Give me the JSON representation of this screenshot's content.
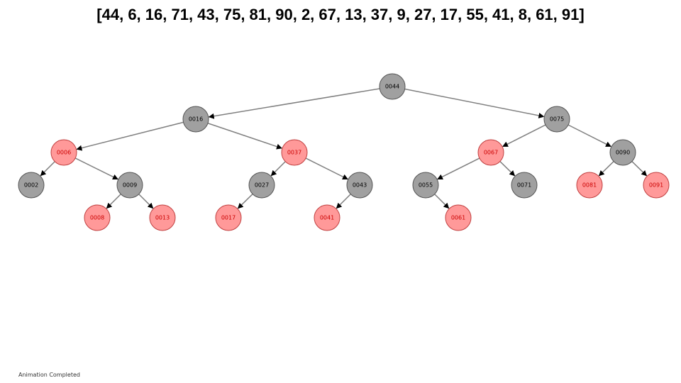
{
  "title": "[44, 6, 16, 71, 43, 75, 81, 90, 2, 67, 13, 37, 9, 27, 17, 55, 41, 8, 61, 91]",
  "status": "Animation Completed",
  "colors": {
    "black_fill": "#a0a0a0",
    "black_stroke": "#555555",
    "black_text": "#000000",
    "red_fill": "#ff9999",
    "red_stroke": "#c04040",
    "red_text": "#cc0000",
    "edge": "#808080",
    "arrow": "#000000"
  },
  "tree": {
    "nodes": [
      {
        "id": "44",
        "label": "0044",
        "color": "black"
      },
      {
        "id": "16",
        "label": "0016",
        "color": "black"
      },
      {
        "id": "75",
        "label": "0075",
        "color": "black"
      },
      {
        "id": "6",
        "label": "0006",
        "color": "red"
      },
      {
        "id": "37",
        "label": "0037",
        "color": "red"
      },
      {
        "id": "67",
        "label": "0067",
        "color": "red"
      },
      {
        "id": "90",
        "label": "0090",
        "color": "black"
      },
      {
        "id": "2",
        "label": "0002",
        "color": "black"
      },
      {
        "id": "9",
        "label": "0009",
        "color": "black"
      },
      {
        "id": "27",
        "label": "0027",
        "color": "black"
      },
      {
        "id": "43",
        "label": "0043",
        "color": "black"
      },
      {
        "id": "55",
        "label": "0055",
        "color": "black"
      },
      {
        "id": "71",
        "label": "0071",
        "color": "black"
      },
      {
        "id": "81",
        "label": "0081",
        "color": "red"
      },
      {
        "id": "91",
        "label": "0091",
        "color": "red"
      },
      {
        "id": "8",
        "label": "0008",
        "color": "red"
      },
      {
        "id": "13",
        "label": "0013",
        "color": "red"
      },
      {
        "id": "17",
        "label": "0017",
        "color": "red"
      },
      {
        "id": "41",
        "label": "0041",
        "color": "red"
      },
      {
        "id": "61",
        "label": "0061",
        "color": "red"
      }
    ],
    "edges": [
      [
        "44",
        "16"
      ],
      [
        "44",
        "75"
      ],
      [
        "16",
        "6"
      ],
      [
        "16",
        "37"
      ],
      [
        "75",
        "67"
      ],
      [
        "75",
        "90"
      ],
      [
        "6",
        "2"
      ],
      [
        "6",
        "9"
      ],
      [
        "37",
        "27"
      ],
      [
        "37",
        "43"
      ],
      [
        "67",
        "55"
      ],
      [
        "67",
        "71"
      ],
      [
        "90",
        "81"
      ],
      [
        "90",
        "91"
      ],
      [
        "9",
        "8"
      ],
      [
        "9",
        "13"
      ],
      [
        "27",
        "17"
      ],
      [
        "43",
        "41"
      ],
      [
        "55",
        "61"
      ]
    ]
  }
}
